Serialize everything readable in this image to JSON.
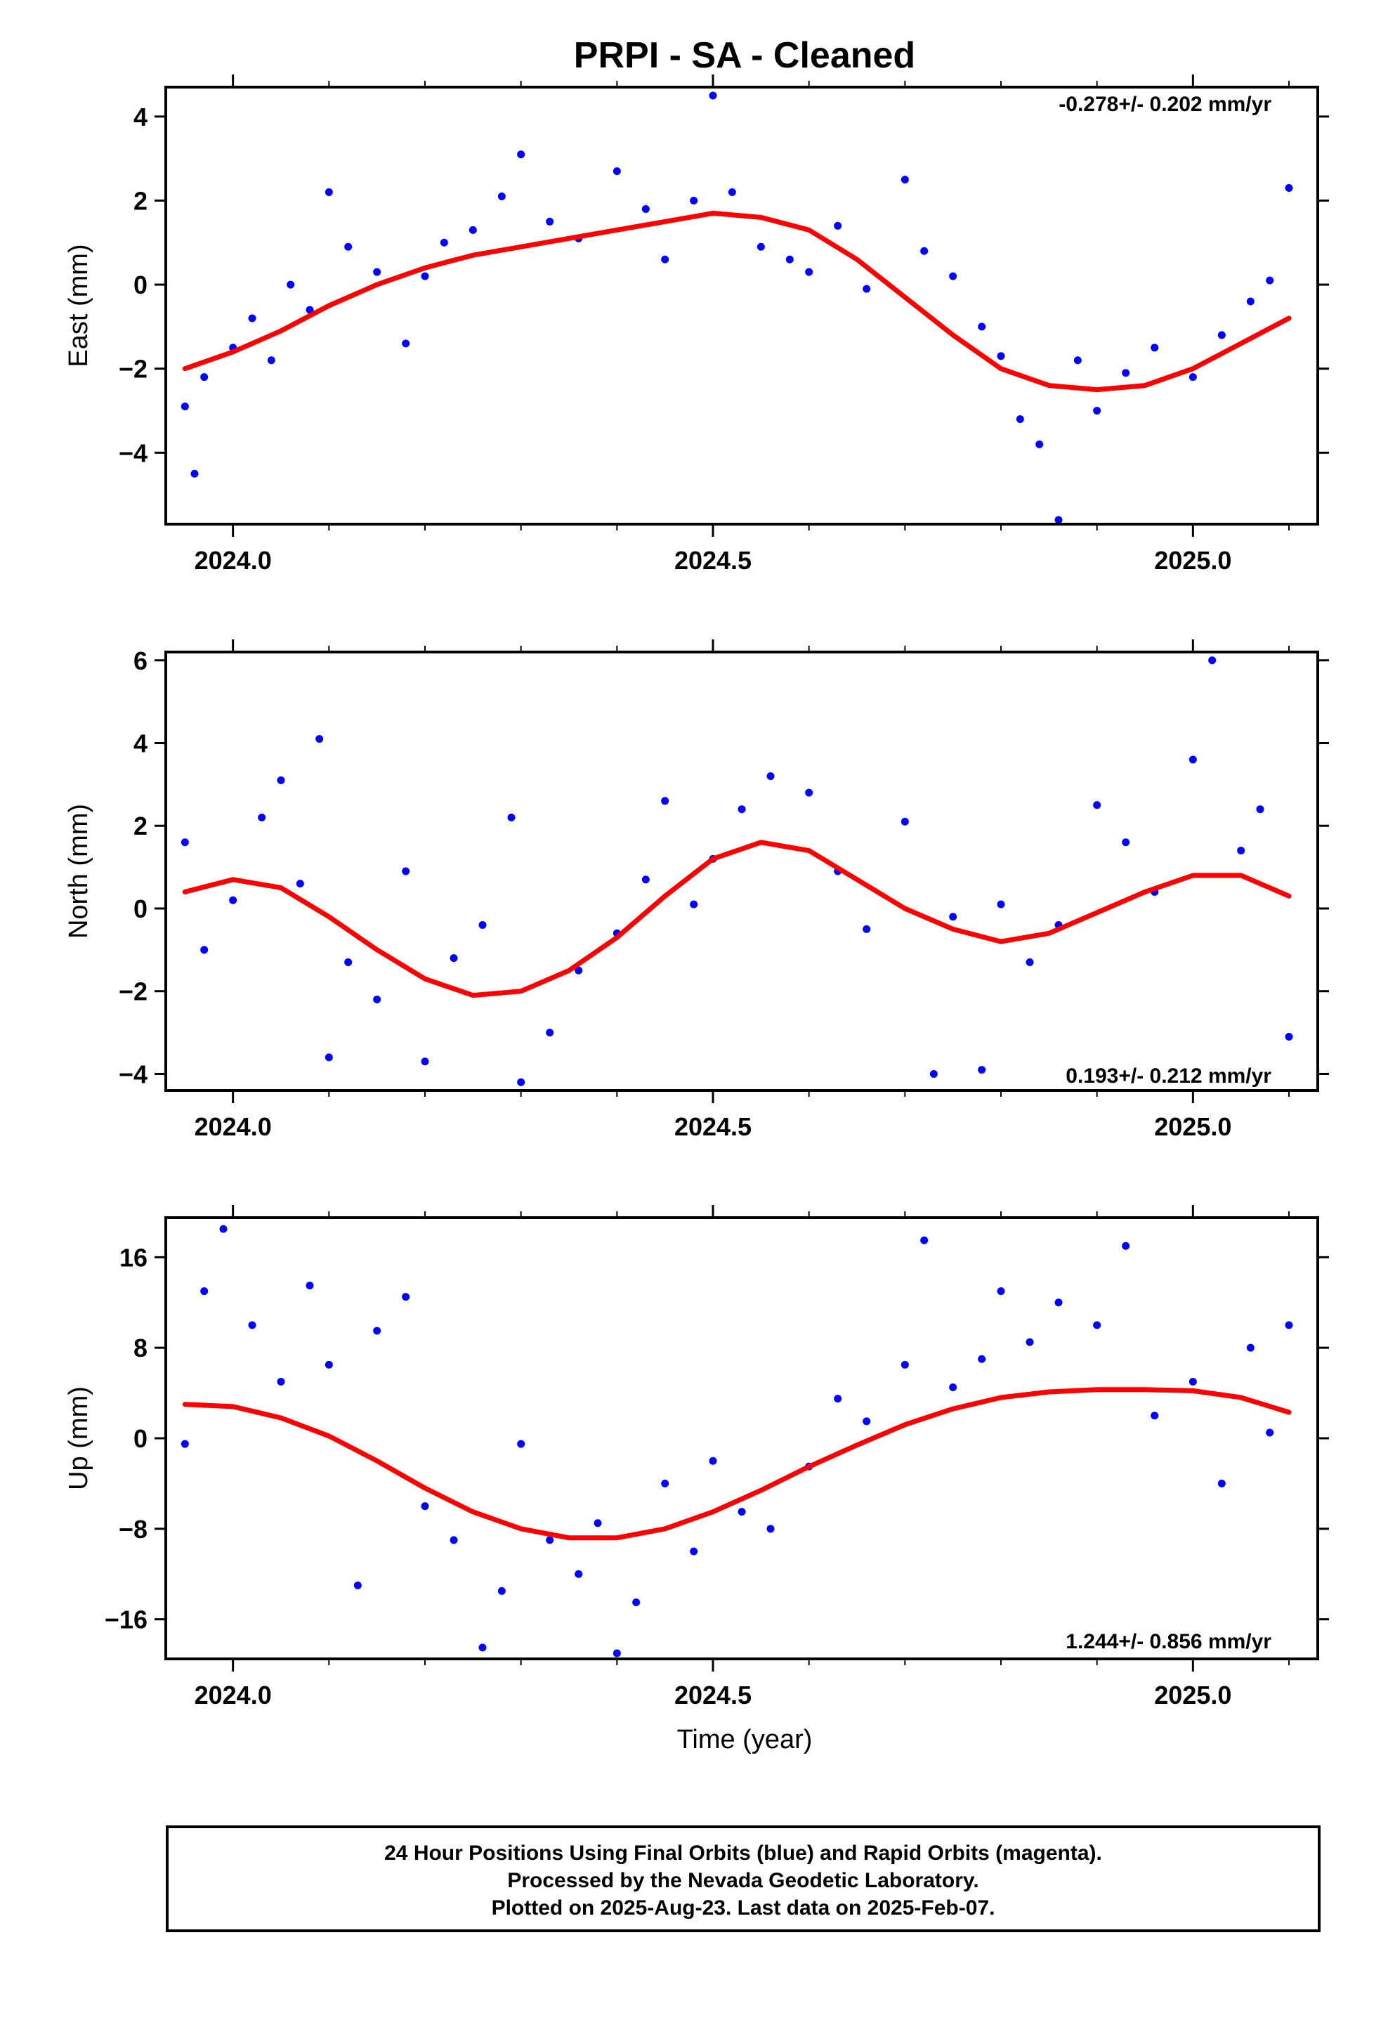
{
  "title": "PRPI  - SA - Cleaned",
  "xlabel": "Time (year)",
  "footer": {
    "line1": "24 Hour Positions Using Final Orbits (blue) and Rapid Orbits (magenta).",
    "line2": "Processed by the Nevada Geodetic Laboratory.",
    "line3": "Plotted on 2025-Aug-23. Last data on 2025-Feb-07."
  },
  "colors": {
    "final_orbit_points": "#0000ff",
    "model_fit": "#ff0000",
    "frame": "#000000"
  },
  "chart_data": [
    {
      "type": "scatter",
      "ylabel": "East (mm)",
      "rate_text": "-0.278+/- 0.202 mm/yr",
      "xlim": [
        2023.93,
        2025.13
      ],
      "ylim": [
        -5.7,
        4.7
      ],
      "xticks": [
        2024.0,
        2024.5,
        2025.0
      ],
      "xtick_labels": [
        "2024.0",
        "2024.5",
        "2025.0"
      ],
      "yticks": [
        -4,
        -2,
        0,
        2,
        4
      ],
      "ytick_labels": [
        "−4",
        "−2",
        "0",
        "2",
        "4"
      ],
      "series": [
        {
          "style": "points",
          "x": [
            2023.95,
            2023.96,
            2023.97,
            2024.0,
            2024.02,
            2024.04,
            2024.06,
            2024.08,
            2024.1,
            2024.12,
            2024.15,
            2024.18,
            2024.2,
            2024.22,
            2024.25,
            2024.28,
            2024.3,
            2024.33,
            2024.36,
            2024.4,
            2024.43,
            2024.45,
            2024.48,
            2024.5,
            2024.52,
            2024.55,
            2024.58,
            2024.6,
            2024.63,
            2024.66,
            2024.7,
            2024.72,
            2024.75,
            2024.78,
            2024.8,
            2024.82,
            2024.84,
            2024.86,
            2024.88,
            2024.9,
            2024.93,
            2024.96,
            2025.0,
            2025.03,
            2025.06,
            2025.08,
            2025.1
          ],
          "y": [
            -2.9,
            -4.5,
            -2.2,
            -1.5,
            -0.8,
            -1.8,
            0.0,
            -0.6,
            2.2,
            0.9,
            0.3,
            -1.4,
            0.2,
            1.0,
            1.3,
            2.1,
            3.1,
            1.5,
            1.1,
            2.7,
            1.8,
            0.6,
            2.0,
            4.5,
            2.2,
            0.9,
            0.6,
            0.3,
            1.4,
            -0.1,
            2.5,
            0.8,
            0.2,
            -1.0,
            -1.7,
            -3.2,
            -3.8,
            -5.6,
            -1.8,
            -3.0,
            -2.1,
            -1.5,
            -2.2,
            -1.2,
            -0.4,
            0.1,
            2.3
          ]
        },
        {
          "style": "fit",
          "x": [
            2023.95,
            2024.0,
            2024.05,
            2024.1,
            2024.15,
            2024.2,
            2024.25,
            2024.3,
            2024.35,
            2024.4,
            2024.45,
            2024.5,
            2024.55,
            2024.6,
            2024.65,
            2024.7,
            2024.75,
            2024.8,
            2024.85,
            2024.9,
            2024.95,
            2025.0,
            2025.05,
            2025.1
          ],
          "y": [
            -2.0,
            -1.6,
            -1.1,
            -0.5,
            0.0,
            0.4,
            0.7,
            0.9,
            1.1,
            1.3,
            1.5,
            1.7,
            1.6,
            1.3,
            0.6,
            -0.3,
            -1.2,
            -2.0,
            -2.4,
            -2.5,
            -2.4,
            -2.0,
            -1.4,
            -0.8
          ]
        }
      ]
    },
    {
      "type": "scatter",
      "ylabel": "North (mm)",
      "rate_text": "0.193+/- 0.212 mm/yr",
      "xlim": [
        2023.93,
        2025.13
      ],
      "ylim": [
        -4.4,
        6.2
      ],
      "xticks": [
        2024.0,
        2024.5,
        2025.0
      ],
      "xtick_labels": [
        "2024.0",
        "2024.5",
        "2025.0"
      ],
      "yticks": [
        -4,
        -2,
        0,
        2,
        4,
        6
      ],
      "ytick_labels": [
        "−4",
        "−2",
        "0",
        "2",
        "4",
        "6"
      ],
      "series": [
        {
          "style": "points",
          "x": [
            2023.95,
            2023.97,
            2024.0,
            2024.03,
            2024.05,
            2024.07,
            2024.09,
            2024.1,
            2024.12,
            2024.15,
            2024.18,
            2024.2,
            2024.23,
            2024.26,
            2024.29,
            2024.3,
            2024.33,
            2024.36,
            2024.4,
            2024.43,
            2024.45,
            2024.48,
            2024.5,
            2024.53,
            2024.56,
            2024.6,
            2024.63,
            2024.66,
            2024.7,
            2024.73,
            2024.75,
            2024.78,
            2024.8,
            2024.83,
            2024.86,
            2024.9,
            2024.93,
            2024.96,
            2025.0,
            2025.02,
            2025.05,
            2025.07,
            2025.1
          ],
          "y": [
            1.6,
            -1.0,
            0.2,
            2.2,
            3.1,
            0.6,
            4.1,
            -3.6,
            -1.3,
            -2.2,
            0.9,
            -3.7,
            -1.2,
            -0.4,
            2.2,
            -4.2,
            -3.0,
            -1.5,
            -0.6,
            0.7,
            2.6,
            0.1,
            1.2,
            2.4,
            3.2,
            2.8,
            0.9,
            -0.5,
            2.1,
            -4.0,
            -0.2,
            -3.9,
            0.1,
            -1.3,
            -0.4,
            2.5,
            1.6,
            0.4,
            3.6,
            6.0,
            1.4,
            2.4,
            -3.1
          ]
        },
        {
          "style": "fit",
          "x": [
            2023.95,
            2024.0,
            2024.05,
            2024.1,
            2024.15,
            2024.2,
            2024.25,
            2024.3,
            2024.35,
            2024.4,
            2024.45,
            2024.5,
            2024.55,
            2024.6,
            2024.65,
            2024.7,
            2024.75,
            2024.8,
            2024.85,
            2024.9,
            2024.95,
            2025.0,
            2025.05,
            2025.1
          ],
          "y": [
            0.4,
            0.7,
            0.5,
            -0.2,
            -1.0,
            -1.7,
            -2.1,
            -2.0,
            -1.5,
            -0.7,
            0.3,
            1.2,
            1.6,
            1.4,
            0.7,
            0.0,
            -0.5,
            -0.8,
            -0.6,
            -0.1,
            0.4,
            0.8,
            0.8,
            0.3
          ]
        }
      ]
    },
    {
      "type": "scatter",
      "ylabel": "Up (mm)",
      "rate_text": "1.244+/- 0.856 mm/yr",
      "xlim": [
        2023.93,
        2025.13
      ],
      "ylim": [
        -19.5,
        19.5
      ],
      "xticks": [
        2024.0,
        2024.5,
        2025.0
      ],
      "xtick_labels": [
        "2024.0",
        "2024.5",
        "2025.0"
      ],
      "yticks": [
        -16,
        -8,
        0,
        8,
        16
      ],
      "ytick_labels": [
        "−16",
        "−8",
        "0",
        "8",
        "16"
      ],
      "series": [
        {
          "style": "points",
          "x": [
            2023.95,
            2023.97,
            2023.99,
            2024.02,
            2024.05,
            2024.08,
            2024.1,
            2024.13,
            2024.15,
            2024.18,
            2024.2,
            2024.23,
            2024.26,
            2024.28,
            2024.3,
            2024.33,
            2024.36,
            2024.38,
            2024.4,
            2024.42,
            2024.45,
            2024.48,
            2024.5,
            2024.53,
            2024.56,
            2024.6,
            2024.63,
            2024.66,
            2024.7,
            2024.72,
            2024.75,
            2024.78,
            2024.8,
            2024.83,
            2024.86,
            2024.9,
            2024.93,
            2024.96,
            2025.0,
            2025.03,
            2025.06,
            2025.08,
            2025.1
          ],
          "y": [
            -0.5,
            13.0,
            18.5,
            10.0,
            5.0,
            13.5,
            6.5,
            -13.0,
            9.5,
            12.5,
            -6.0,
            -9.0,
            -18.5,
            -13.5,
            -0.5,
            -9.0,
            -12.0,
            -7.5,
            -19.0,
            -14.5,
            -4.0,
            -10.0,
            -2.0,
            -6.5,
            -8.0,
            -2.5,
            3.5,
            1.5,
            6.5,
            17.5,
            4.5,
            7.0,
            13.0,
            8.5,
            12.0,
            10.0,
            17.0,
            2.0,
            5.0,
            -4.0,
            8.0,
            0.5,
            10.0
          ]
        },
        {
          "style": "fit",
          "x": [
            2023.95,
            2024.0,
            2024.05,
            2024.1,
            2024.15,
            2024.2,
            2024.25,
            2024.3,
            2024.35,
            2024.4,
            2024.45,
            2024.5,
            2024.55,
            2024.6,
            2024.65,
            2024.7,
            2024.75,
            2024.8,
            2024.85,
            2024.9,
            2024.95,
            2025.0,
            2025.05,
            2025.1
          ],
          "y": [
            3.0,
            2.8,
            1.8,
            0.2,
            -2.0,
            -4.4,
            -6.5,
            -8.0,
            -8.8,
            -8.8,
            -8.0,
            -6.5,
            -4.6,
            -2.5,
            -0.6,
            1.2,
            2.6,
            3.6,
            4.1,
            4.3,
            4.3,
            4.2,
            3.6,
            2.3
          ]
        }
      ]
    }
  ]
}
